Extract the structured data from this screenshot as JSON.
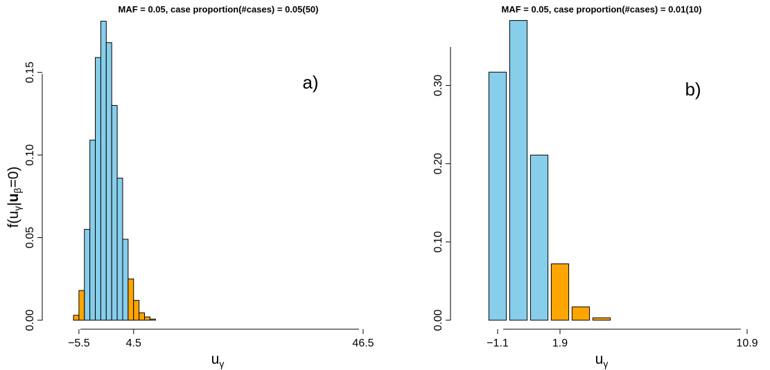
{
  "colors": {
    "null_fill": "#87CEEB",
    "tail_fill": "#FFA500",
    "bar_stroke": "#000000"
  },
  "chart_data": [
    {
      "type": "bar",
      "title": "MAF = 0.05, case proportion(#cases) = 0.05(50)",
      "panel_label": "a)",
      "xlabel": {
        "base": "u",
        "sub": "γ"
      },
      "ylabel": {
        "prefix": "f(u",
        "sub1": "γ",
        "mid": "|",
        "bold": "u",
        "sub2": "β",
        "suffix": "=0)"
      },
      "ylim": [
        0,
        0.18
      ],
      "xlim": [
        -6.5,
        46.5
      ],
      "yticks": [
        {
          "value": 0.0,
          "label": "0.00"
        },
        {
          "value": 0.05,
          "label": "0.05"
        },
        {
          "value": 0.1,
          "label": "0.10"
        },
        {
          "value": 0.15,
          "label": "0.15"
        }
      ],
      "xticks": [
        {
          "value": -5.5,
          "label": "−5.5"
        },
        {
          "value": 4.5,
          "label": "4.5"
        },
        {
          "value": 46.5,
          "label": "46.5"
        }
      ],
      "bars": [
        {
          "x": -6.0,
          "y": 0.003,
          "group": "tail"
        },
        {
          "x": -5.0,
          "y": 0.018,
          "group": "tail"
        },
        {
          "x": -4.0,
          "y": 0.055,
          "group": "null"
        },
        {
          "x": -3.0,
          "y": 0.109,
          "group": "null"
        },
        {
          "x": -2.0,
          "y": 0.159,
          "group": "null"
        },
        {
          "x": -1.0,
          "y": 0.181,
          "group": "null"
        },
        {
          "x": 0.0,
          "y": 0.168,
          "group": "null"
        },
        {
          "x": 1.0,
          "y": 0.13,
          "group": "null"
        },
        {
          "x": 2.0,
          "y": 0.086,
          "group": "null"
        },
        {
          "x": 3.0,
          "y": 0.049,
          "group": "null"
        },
        {
          "x": 4.0,
          "y": 0.025,
          "group": "tail"
        },
        {
          "x": 5.0,
          "y": 0.012,
          "group": "tail"
        },
        {
          "x": 6.0,
          "y": 0.0045,
          "group": "tail"
        },
        {
          "x": 7.0,
          "y": 0.002,
          "group": "tail"
        },
        {
          "x": 8.0,
          "y": 0.0007,
          "group": "tail"
        }
      ],
      "grid": false,
      "legend": "none"
    },
    {
      "type": "bar",
      "title": "MAF = 0.05, case proportion(#cases) = 0.01(10)",
      "panel_label": "b)",
      "xlabel": {
        "base": "u",
        "sub": "γ"
      },
      "ylim": [
        0,
        0.38
      ],
      "xlim": [
        -1.9,
        10.9
      ],
      "yticks": [
        {
          "value": 0.0,
          "label": "0.00"
        },
        {
          "value": 0.1,
          "label": "0.10"
        },
        {
          "value": 0.2,
          "label": "0.20"
        },
        {
          "value": 0.3,
          "label": "0.30"
        }
      ],
      "xticks": [
        {
          "value": -1.1,
          "label": "−1.1"
        },
        {
          "value": 1.9,
          "label": "1.9"
        },
        {
          "value": 10.9,
          "label": "10.9"
        }
      ],
      "bars": [
        {
          "x": -1.1,
          "y": 0.317,
          "group": "null"
        },
        {
          "x": -0.1,
          "y": 0.383,
          "group": "null"
        },
        {
          "x": 0.9,
          "y": 0.211,
          "group": "null"
        },
        {
          "x": 1.9,
          "y": 0.072,
          "group": "tail"
        },
        {
          "x": 2.9,
          "y": 0.017,
          "group": "tail"
        },
        {
          "x": 3.9,
          "y": 0.003,
          "group": "tail"
        }
      ],
      "grid": false,
      "legend": "none"
    }
  ]
}
